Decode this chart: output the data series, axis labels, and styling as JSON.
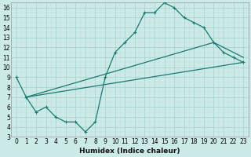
{
  "xlabel": "Humidex (Indice chaleur)",
  "bg_color": "#cceae8",
  "grid_major_color": "#aad4d0",
  "grid_minor_color": "#bde0dc",
  "line_color": "#1a7a6e",
  "xlim": [
    -0.5,
    23.5
  ],
  "ylim": [
    3,
    16.5
  ],
  "xticks": [
    0,
    1,
    2,
    3,
    4,
    5,
    6,
    7,
    8,
    9,
    10,
    11,
    12,
    13,
    14,
    15,
    16,
    17,
    18,
    19,
    20,
    21,
    22,
    23
  ],
  "yticks": [
    3,
    4,
    5,
    6,
    7,
    8,
    9,
    10,
    11,
    12,
    13,
    14,
    15,
    16
  ],
  "line1_x": [
    0,
    1,
    2,
    3,
    4,
    5,
    6,
    7,
    8,
    9,
    10,
    11,
    12,
    13,
    14,
    15,
    16,
    17,
    18,
    19,
    20,
    21,
    22,
    23
  ],
  "line1_y": [
    9.0,
    7.0,
    5.5,
    6.0,
    5.0,
    4.5,
    4.5,
    3.5,
    4.5,
    9.0,
    11.5,
    12.5,
    13.5,
    15.5,
    15.5,
    16.5,
    16.0,
    15.0,
    14.5,
    14.0,
    12.5,
    11.5,
    11.0,
    10.5
  ],
  "line2_x": [
    1,
    23
  ],
  "line2_y": [
    7.0,
    10.5
  ],
  "line3_x": [
    1,
    20,
    23
  ],
  "line3_y": [
    7.0,
    12.5,
    11.0
  ],
  "markersize": 3.5,
  "linewidth": 0.9,
  "tick_fontsize": 5.5,
  "xlabel_fontsize": 6.5
}
